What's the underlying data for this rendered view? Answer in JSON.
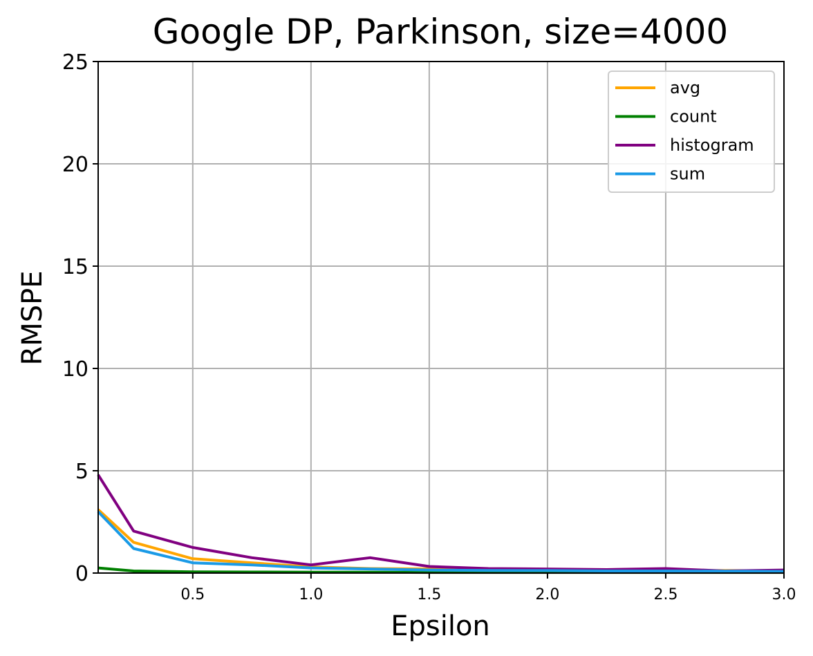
{
  "chart_data": {
    "type": "line",
    "title": "Google DP, Parkinson, size=4000",
    "xlabel": "Epsilon",
    "ylabel": "RMSPE",
    "xlim": [
      0.1,
      3.0
    ],
    "ylim": [
      0,
      25
    ],
    "x_ticks": [
      0.5,
      1.0,
      1.5,
      2.0,
      2.5,
      3.0
    ],
    "x_tick_labels": [
      "0.5",
      "1.0",
      "1.5",
      "2.0",
      "2.5",
      "3.0"
    ],
    "y_ticks": [
      0,
      5,
      10,
      15,
      20,
      25
    ],
    "y_tick_labels": [
      "0",
      "5",
      "10",
      "15",
      "20",
      "25"
    ],
    "grid": true,
    "legend_position": "top-right",
    "x": [
      0.1,
      0.25,
      0.5,
      0.75,
      1.0,
      1.25,
      1.5,
      1.75,
      2.0,
      2.25,
      2.5,
      2.75,
      3.0
    ],
    "series": [
      {
        "name": "avg",
        "color": "#ffa500",
        "values": [
          3.1,
          1.5,
          0.7,
          0.5,
          0.3,
          0.22,
          0.2,
          0.18,
          0.15,
          0.14,
          0.13,
          0.12,
          0.11
        ]
      },
      {
        "name": "count",
        "color": "#008000",
        "values": [
          0.25,
          0.1,
          0.06,
          0.05,
          0.04,
          0.04,
          0.03,
          0.03,
          0.03,
          0.03,
          0.03,
          0.03,
          0.03
        ]
      },
      {
        "name": "histogram",
        "color": "#800080",
        "values": [
          4.8,
          2.05,
          1.25,
          0.75,
          0.4,
          0.75,
          0.32,
          0.22,
          0.2,
          0.17,
          0.22,
          0.1,
          0.15
        ]
      },
      {
        "name": "sum",
        "color": "#1a9ae6",
        "values": [
          3.0,
          1.2,
          0.5,
          0.4,
          0.25,
          0.2,
          0.15,
          0.13,
          0.12,
          0.1,
          0.1,
          0.09,
          0.08
        ]
      }
    ]
  }
}
